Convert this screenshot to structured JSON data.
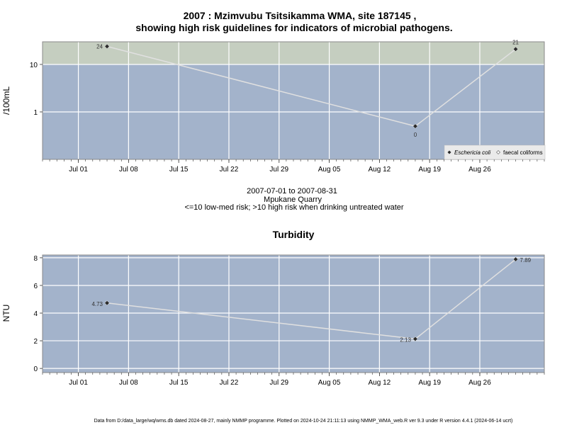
{
  "chart_data": [
    {
      "type": "line",
      "title": "2007 : Mzimvubu Tsitsikamma WMA, site 187145 ,",
      "title_line2": "showing high risk guidelines for indicators of microbial pathogens.",
      "ylabel": "/100mL",
      "y_scale": "log",
      "ylim": [
        0.1,
        30
      ],
      "xlim": [
        "2007-06-26",
        "2007-09-04"
      ],
      "x_ticks": [
        "Jul 01",
        "Jul 08",
        "Jul 15",
        "Jul 22",
        "Jul 29",
        "Aug 05",
        "Aug 12",
        "Aug 19",
        "Aug 26"
      ],
      "x_tick_dates": [
        "2007-07-01",
        "2007-07-08",
        "2007-07-15",
        "2007-07-22",
        "2007-07-29",
        "2007-08-05",
        "2007-08-12",
        "2007-08-19",
        "2007-08-26"
      ],
      "y_ticks": [
        "1",
        "10"
      ],
      "y_tick_values": [
        1,
        10
      ],
      "high_risk_threshold": 10,
      "grid": true,
      "zone_colors": {
        "high": "#c5cec0",
        "low": "#a3b3cb"
      },
      "legend_position": "bottom-right",
      "series": [
        {
          "name": "Eschericia coli",
          "marker": "filled-diamond",
          "color": "#2a2a2a",
          "line_color": "#e0e0e0",
          "x": [
            "2007-07-05",
            "2007-08-17",
            "2007-08-31"
          ],
          "values": [
            24,
            0.5,
            21
          ],
          "labels": [
            "24",
            "0",
            "21"
          ]
        },
        {
          "name": "faecal coliforms",
          "marker": "open-diamond",
          "color": "#ffffff",
          "x": [],
          "values": []
        }
      ],
      "caption": [
        "2007-07-01 to 2007-08-31",
        "Mpukane Quarry",
        "<=10 low-med risk; >10 high risk when drinking untreated water"
      ]
    },
    {
      "type": "line",
      "title": "Turbidity",
      "ylabel": "NTU",
      "ylim": [
        -0.3,
        8.2
      ],
      "xlim": [
        "2007-06-26",
        "2007-09-04"
      ],
      "x_ticks": [
        "Jul 01",
        "Jul 08",
        "Jul 15",
        "Jul 22",
        "Jul 29",
        "Aug 05",
        "Aug 12",
        "Aug 19",
        "Aug 26"
      ],
      "x_tick_dates": [
        "2007-07-01",
        "2007-07-08",
        "2007-07-15",
        "2007-07-22",
        "2007-07-29",
        "2007-08-05",
        "2007-08-12",
        "2007-08-19",
        "2007-08-26"
      ],
      "y_ticks": [
        "0",
        "2",
        "4",
        "6",
        "8"
      ],
      "y_tick_values": [
        0,
        2,
        4,
        6,
        8
      ],
      "grid": true,
      "bg_color": "#a3b3cb",
      "series": [
        {
          "marker": "filled-diamond",
          "color": "#2a2a2a",
          "line_color": "#e0e0e0",
          "x": [
            "2007-07-05",
            "2007-08-17",
            "2007-08-31"
          ],
          "values": [
            4.73,
            2.13,
            7.89
          ],
          "labels": [
            "4.73",
            "2.13",
            "7.89"
          ]
        }
      ]
    }
  ],
  "footer": "Data from D:/data_large/wq/wms.db dated 2024-08-27, mainly NMMP programme. Plotted on 2024-10-24 21:11:13 using NMMP_WMA_web.R ver 9.3 under R version 4.4.1 (2024-06-14 ucrt)"
}
